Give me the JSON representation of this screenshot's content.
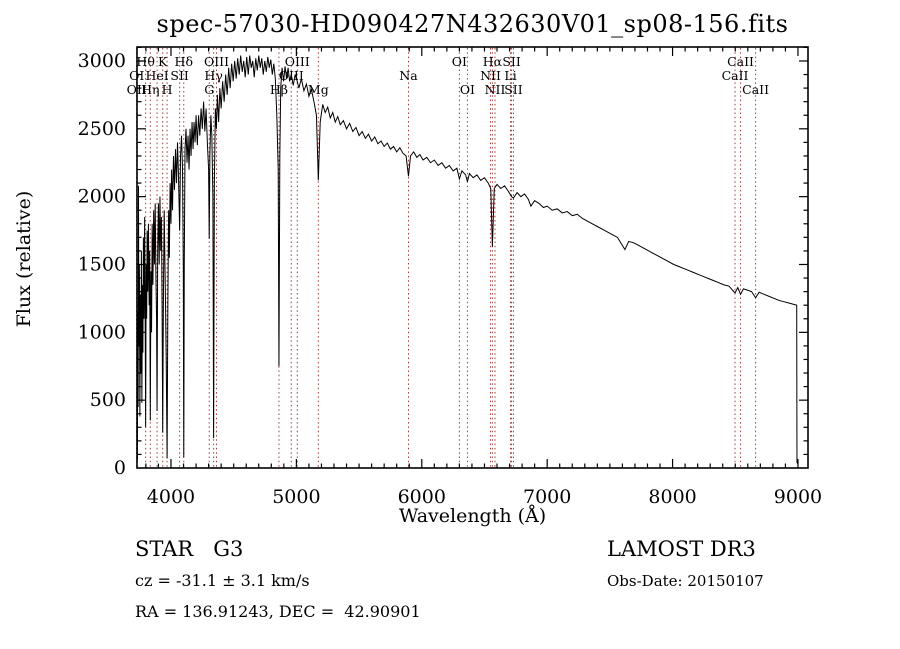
{
  "page": {
    "title": "spec-57030-HD090427N432630V01_sp08-156.fits"
  },
  "axes": {
    "x_label": "Wavelength (Å)",
    "y_label": "Flux (relative)",
    "x_ticks": [
      4000,
      5000,
      6000,
      7000,
      8000,
      9000
    ],
    "y_ticks": [
      0,
      500,
      1000,
      1500,
      2000,
      2500,
      3000
    ],
    "x_minor_step": 100,
    "y_minor_step": 100
  },
  "annotations": {
    "class_label": "STAR   G3",
    "survey": "LAMOST DR3",
    "cz": "cz = -31.1 ± 3.1 km/s",
    "obs_date": "Obs-Date: 20150107",
    "coords": "RA = 136.91243, DEC =  42.90901"
  },
  "colors": {
    "line_marker": "#a33b3b",
    "spectrum": "#000000",
    "frame": "#000000"
  },
  "chart_data": {
    "type": "line",
    "title": "spec-57030-HD090427N432630V01_sp08-156.fits",
    "xlabel": "Wavelength (Å)",
    "ylabel": "Flux (relative)",
    "x_range": [
      3729,
      9080
    ],
    "y_range": [
      0,
      3103
    ],
    "grid": false,
    "spectral_lines": [
      {
        "name": "OI",
        "wavelength": 3727,
        "row": 2
      },
      {
        "name": "OII",
        "wavelength": 3727,
        "row": 3
      },
      {
        "name": "Hθ",
        "wavelength": 3798,
        "row": 1
      },
      {
        "name": "Hη",
        "wavelength": 3835,
        "row": 3
      },
      {
        "name": "HeI",
        "wavelength": 3889,
        "row": 2
      },
      {
        "name": "K",
        "wavelength": 3934,
        "row": 1
      },
      {
        "name": "H",
        "wavelength": 3969,
        "row": 3
      },
      {
        "name": "SII",
        "wavelength": 4069,
        "row": 2
      },
      {
        "name": "Hδ",
        "wavelength": 4102,
        "row": 1
      },
      {
        "name": "G",
        "wavelength": 4305,
        "row": 3
      },
      {
        "name": "Hγ",
        "wavelength": 4340,
        "row": 2
      },
      {
        "name": "OIII",
        "wavelength": 4363,
        "row": 1
      },
      {
        "name": "Hβ",
        "wavelength": 4861,
        "row": 3
      },
      {
        "name": "OIII",
        "wavelength": 4959,
        "row": 2
      },
      {
        "name": "OIII",
        "wavelength": 5007,
        "row": 1
      },
      {
        "name": "Mg",
        "wavelength": 5175,
        "row": 3
      },
      {
        "name": "Na",
        "wavelength": 5894,
        "row": 2
      },
      {
        "name": "OI",
        "wavelength": 6300,
        "row": 1
      },
      {
        "name": "OI",
        "wavelength": 6364,
        "row": 3
      },
      {
        "name": "NII",
        "wavelength": 6548,
        "row": 2
      },
      {
        "name": "Hα",
        "wavelength": 6563,
        "row": 1
      },
      {
        "name": "NII",
        "wavelength": 6584,
        "row": 3
      },
      {
        "name": "Li",
        "wavelength": 6708,
        "row": 2
      },
      {
        "name": "SII",
        "wavelength": 6716,
        "row": 1
      },
      {
        "name": "SII",
        "wavelength": 6731,
        "row": 3
      },
      {
        "name": "CaII",
        "wavelength": 8498,
        "row": 2
      },
      {
        "name": "CaII",
        "wavelength": 8542,
        "row": 1
      },
      {
        "name": "CaII",
        "wavelength": 8662,
        "row": 3
      }
    ],
    "spectrum_points": [
      [
        3729,
        640
      ],
      [
        3732,
        60
      ],
      [
        3735,
        1150
      ],
      [
        3738,
        450
      ],
      [
        3741,
        2080
      ],
      [
        3744,
        900
      ],
      [
        3748,
        1500
      ],
      [
        3752,
        380
      ],
      [
        3756,
        1280
      ],
      [
        3760,
        700
      ],
      [
        3764,
        1600
      ],
      [
        3768,
        480
      ],
      [
        3772,
        1350
      ],
      [
        3776,
        850
      ],
      [
        3780,
        1700
      ],
      [
        3785,
        1100
      ],
      [
        3790,
        1850
      ],
      [
        3795,
        950
      ],
      [
        3798,
        300
      ],
      [
        3802,
        1500
      ],
      [
        3806,
        1100
      ],
      [
        3810,
        1750
      ],
      [
        3815,
        1300
      ],
      [
        3820,
        1800
      ],
      [
        3826,
        1200
      ],
      [
        3830,
        1600
      ],
      [
        3835,
        350
      ],
      [
        3840,
        1450
      ],
      [
        3845,
        1000
      ],
      [
        3850,
        1800
      ],
      [
        3856,
        1350
      ],
      [
        3862,
        1900
      ],
      [
        3868,
        1500
      ],
      [
        3874,
        1950
      ],
      [
        3880,
        1400
      ],
      [
        3885,
        1100
      ],
      [
        3889,
        420
      ],
      [
        3894,
        1600
      ],
      [
        3900,
        1950
      ],
      [
        3906,
        1500
      ],
      [
        3912,
        2000
      ],
      [
        3918,
        1600
      ],
      [
        3924,
        1850
      ],
      [
        3929,
        1200
      ],
      [
        3934,
        260
      ],
      [
        3940,
        1300
      ],
      [
        3946,
        1900
      ],
      [
        3952,
        1500
      ],
      [
        3958,
        1100
      ],
      [
        3963,
        700
      ],
      [
        3969,
        70
      ],
      [
        3975,
        1200
      ],
      [
        3981,
        1900
      ],
      [
        3987,
        1550
      ],
      [
        3993,
        2100
      ],
      [
        4000,
        1800
      ],
      [
        4005,
        2200
      ],
      [
        4012,
        1900
      ],
      [
        4020,
        2300
      ],
      [
        4028,
        2050
      ],
      [
        4036,
        2350
      ],
      [
        4044,
        2100
      ],
      [
        4052,
        2400
      ],
      [
        4060,
        2150
      ],
      [
        4069,
        1750
      ],
      [
        4076,
        2300
      ],
      [
        4084,
        2450
      ],
      [
        4092,
        2200
      ],
      [
        4098,
        1500
      ],
      [
        4102,
        80
      ],
      [
        4106,
        1500
      ],
      [
        4112,
        2350
      ],
      [
        4120,
        2500
      ],
      [
        4128,
        2250
      ],
      [
        4136,
        2450
      ],
      [
        4144,
        2200
      ],
      [
        4152,
        2500
      ],
      [
        4160,
        2300
      ],
      [
        4168,
        2550
      ],
      [
        4176,
        2350
      ],
      [
        4184,
        2550
      ],
      [
        4192,
        2400
      ],
      [
        4200,
        2600
      ],
      [
        4210,
        2380
      ],
      [
        4220,
        2600
      ],
      [
        4230,
        2450
      ],
      [
        4240,
        2650
      ],
      [
        4250,
        2500
      ],
      [
        4260,
        2700
      ],
      [
        4270,
        2480
      ],
      [
        4280,
        2650
      ],
      [
        4290,
        2400
      ],
      [
        4300,
        2200
      ],
      [
        4305,
        1690
      ],
      [
        4310,
        2300
      ],
      [
        4318,
        2600
      ],
      [
        4326,
        2450
      ],
      [
        4334,
        2000
      ],
      [
        4340,
        220
      ],
      [
        4346,
        2100
      ],
      [
        4354,
        2650
      ],
      [
        4362,
        2500
      ],
      [
        4370,
        2750
      ],
      [
        4380,
        2550
      ],
      [
        4390,
        2800
      ],
      [
        4400,
        2650
      ],
      [
        4412,
        2850
      ],
      [
        4424,
        2700
      ],
      [
        4436,
        2900
      ],
      [
        4448,
        2750
      ],
      [
        4460,
        2950
      ],
      [
        4472,
        2800
      ],
      [
        4484,
        2980
      ],
      [
        4496,
        2850
      ],
      [
        4508,
        3000
      ],
      [
        4520,
        2870
      ],
      [
        4532,
        3020
      ],
      [
        4544,
        2900
      ],
      [
        4556,
        3040
      ],
      [
        4568,
        2920
      ],
      [
        4580,
        3000
      ],
      [
        4592,
        2880
      ],
      [
        4604,
        3030
      ],
      [
        4616,
        2900
      ],
      [
        4628,
        3040
      ],
      [
        4640,
        2950
      ],
      [
        4652,
        3000
      ],
      [
        4664,
        2880
      ],
      [
        4676,
        3020
      ],
      [
        4688,
        2930
      ],
      [
        4700,
        3040
      ],
      [
        4712,
        2950
      ],
      [
        4724,
        3020
      ],
      [
        4736,
        2900
      ],
      [
        4748,
        3000
      ],
      [
        4760,
        2920
      ],
      [
        4772,
        3030
      ],
      [
        4784,
        2950
      ],
      [
        4796,
        3010
      ],
      [
        4808,
        2900
      ],
      [
        4820,
        2980
      ],
      [
        4832,
        2870
      ],
      [
        4844,
        2600
      ],
      [
        4855,
        2200
      ],
      [
        4861,
        750
      ],
      [
        4868,
        2300
      ],
      [
        4875,
        2800
      ],
      [
        4886,
        2950
      ],
      [
        4898,
        2850
      ],
      [
        4910,
        2960
      ],
      [
        4922,
        2870
      ],
      [
        4934,
        2950
      ],
      [
        4946,
        2850
      ],
      [
        4959,
        2900
      ],
      [
        4975,
        2820
      ],
      [
        4990,
        2900
      ],
      [
        5007,
        2850
      ],
      [
        5020,
        2800
      ],
      [
        5040,
        2870
      ],
      [
        5060,
        2780
      ],
      [
        5080,
        2830
      ],
      [
        5100,
        2740
      ],
      [
        5120,
        2790
      ],
      [
        5140,
        2700
      ],
      [
        5160,
        2600
      ],
      [
        5175,
        2120
      ],
      [
        5190,
        2550
      ],
      [
        5210,
        2680
      ],
      [
        5230,
        2620
      ],
      [
        5250,
        2660
      ],
      [
        5270,
        2580
      ],
      [
        5290,
        2620
      ],
      [
        5310,
        2550
      ],
      [
        5330,
        2590
      ],
      [
        5350,
        2530
      ],
      [
        5375,
        2560
      ],
      [
        5400,
        2500
      ],
      [
        5425,
        2540
      ],
      [
        5450,
        2480
      ],
      [
        5475,
        2510
      ],
      [
        5500,
        2450
      ],
      [
        5525,
        2480
      ],
      [
        5550,
        2430
      ],
      [
        5575,
        2460
      ],
      [
        5600,
        2410
      ],
      [
        5625,
        2440
      ],
      [
        5650,
        2390
      ],
      [
        5675,
        2410
      ],
      [
        5700,
        2370
      ],
      [
        5725,
        2395
      ],
      [
        5750,
        2350
      ],
      [
        5775,
        2370
      ],
      [
        5800,
        2330
      ],
      [
        5825,
        2360
      ],
      [
        5850,
        2320
      ],
      [
        5875,
        2300
      ],
      [
        5894,
        2150
      ],
      [
        5910,
        2300
      ],
      [
        5935,
        2330
      ],
      [
        5960,
        2290
      ],
      [
        5985,
        2310
      ],
      [
        6010,
        2270
      ],
      [
        6040,
        2290
      ],
      [
        6070,
        2250
      ],
      [
        6100,
        2270
      ],
      [
        6130,
        2230
      ],
      [
        6160,
        2250
      ],
      [
        6190,
        2210
      ],
      [
        6220,
        2230
      ],
      [
        6250,
        2190
      ],
      [
        6280,
        2210
      ],
      [
        6300,
        2130
      ],
      [
        6320,
        2190
      ],
      [
        6350,
        2160
      ],
      [
        6364,
        2110
      ],
      [
        6380,
        2170
      ],
      [
        6410,
        2140
      ],
      [
        6440,
        2160
      ],
      [
        6470,
        2120
      ],
      [
        6500,
        2140
      ],
      [
        6530,
        2100
      ],
      [
        6550,
        2060
      ],
      [
        6563,
        1630
      ],
      [
        6578,
        2060
      ],
      [
        6600,
        2090
      ],
      [
        6630,
        2060
      ],
      [
        6660,
        2080
      ],
      [
        6690,
        2040
      ],
      [
        6716,
        2000
      ],
      [
        6731,
        1990
      ],
      [
        6760,
        2030
      ],
      [
        6790,
        2000
      ],
      [
        6820,
        2020
      ],
      [
        6850,
        1980
      ],
      [
        6870,
        1930
      ],
      [
        6900,
        1970
      ],
      [
        6935,
        1950
      ],
      [
        6970,
        1920
      ],
      [
        7000,
        1930
      ],
      [
        7040,
        1900
      ],
      [
        7080,
        1910
      ],
      [
        7120,
        1880
      ],
      [
        7160,
        1890
      ],
      [
        7200,
        1860
      ],
      [
        7240,
        1870
      ],
      [
        7280,
        1840
      ],
      [
        7320,
        1820
      ],
      [
        7360,
        1800
      ],
      [
        7400,
        1780
      ],
      [
        7440,
        1760
      ],
      [
        7480,
        1740
      ],
      [
        7520,
        1720
      ],
      [
        7560,
        1700
      ],
      [
        7600,
        1640
      ],
      [
        7620,
        1610
      ],
      [
        7650,
        1670
      ],
      [
        7690,
        1660
      ],
      [
        7730,
        1640
      ],
      [
        7770,
        1620
      ],
      [
        7810,
        1600
      ],
      [
        7850,
        1580
      ],
      [
        7890,
        1560
      ],
      [
        7930,
        1540
      ],
      [
        7970,
        1520
      ],
      [
        8010,
        1500
      ],
      [
        8050,
        1485
      ],
      [
        8090,
        1470
      ],
      [
        8130,
        1455
      ],
      [
        8170,
        1440
      ],
      [
        8210,
        1425
      ],
      [
        8250,
        1410
      ],
      [
        8290,
        1395
      ],
      [
        8330,
        1380
      ],
      [
        8370,
        1365
      ],
      [
        8410,
        1350
      ],
      [
        8450,
        1340
      ],
      [
        8498,
        1290
      ],
      [
        8520,
        1330
      ],
      [
        8542,
        1280
      ],
      [
        8565,
        1320
      ],
      [
        8600,
        1310
      ],
      [
        8630,
        1300
      ],
      [
        8662,
        1255
      ],
      [
        8690,
        1295
      ],
      [
        8730,
        1280
      ],
      [
        8770,
        1265
      ],
      [
        8810,
        1250
      ],
      [
        8850,
        1235
      ],
      [
        8890,
        1225
      ],
      [
        8930,
        1215
      ],
      [
        8970,
        1205
      ],
      [
        8990,
        1200
      ],
      [
        8992,
        40
      ],
      [
        9000,
        30
      ]
    ]
  }
}
